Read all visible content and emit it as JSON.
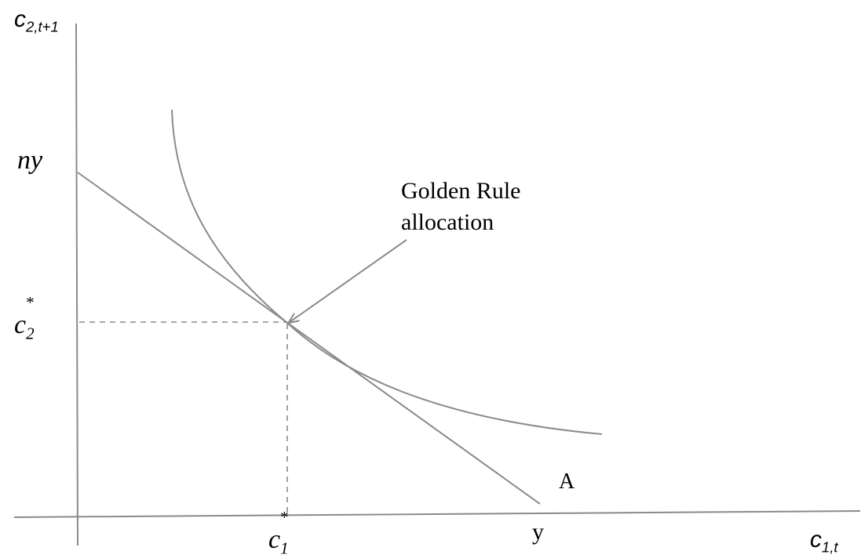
{
  "labels": {
    "y_axis_var": "c",
    "y_axis_sub": "2,t+1",
    "x_axis_var": "c",
    "x_axis_sub": "1,t",
    "ny": "ny",
    "c2_star_var": "c",
    "c2_star_sub": "2",
    "c2_star_sup": "*",
    "c1_star_var": "c",
    "c1_star_sub": "1",
    "c1_star_sup": "*",
    "y": "y",
    "A": "A",
    "annotation_line1": "Golden Rule",
    "annotation_line2": "allocation"
  },
  "colors": {
    "lines": "#8a8a8a",
    "text": "#000000"
  },
  "icons": {
    "arrow": "arrow-head"
  }
}
